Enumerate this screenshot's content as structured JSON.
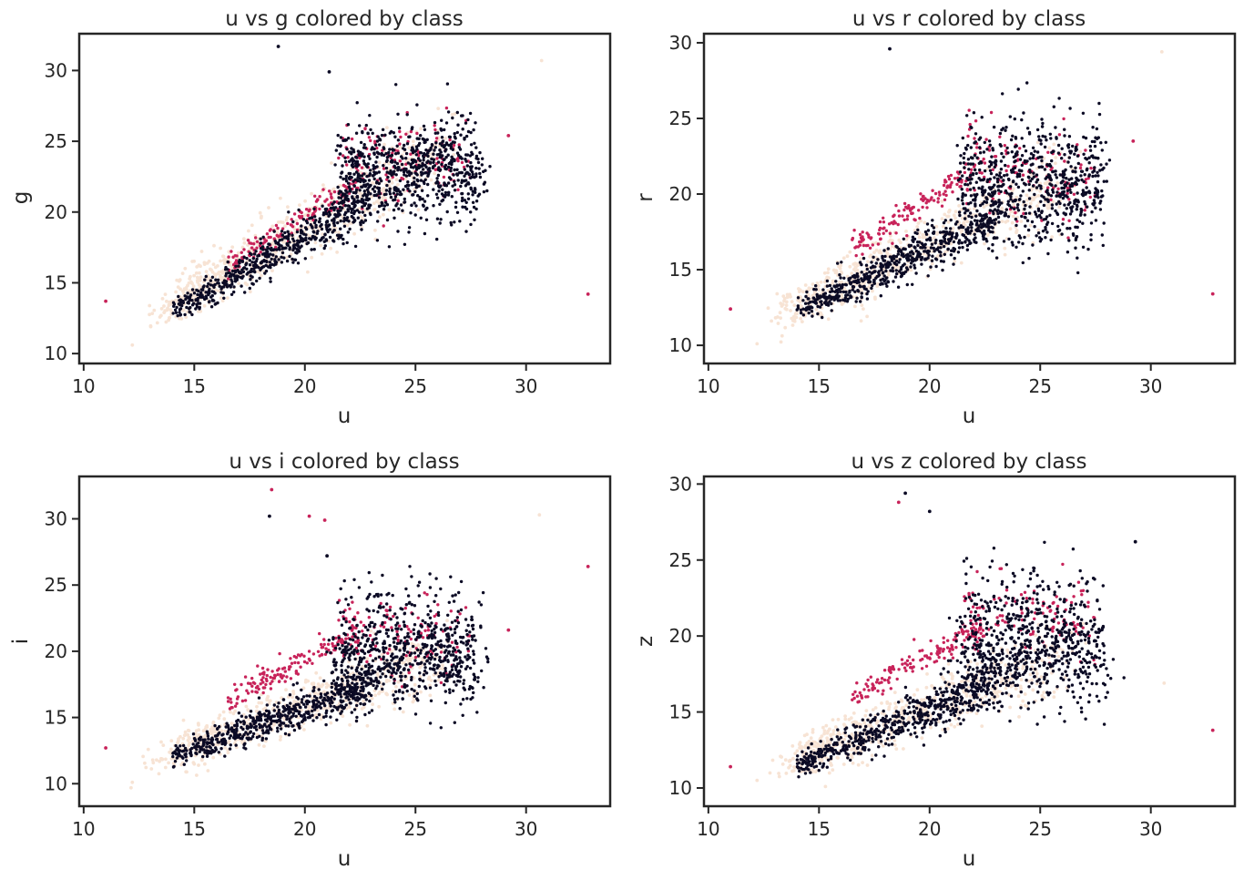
{
  "colors": {
    "class_a": "#f7e3d4",
    "class_b": "#0b0a24",
    "class_c": "#c8235a"
  },
  "chart_data": [
    {
      "type": "scatter",
      "title": "u vs g colored by class",
      "xlabel": "u",
      "ylabel": "g",
      "xlim": [
        9.8,
        33.8
      ],
      "ylim": [
        9.3,
        32.6
      ],
      "xticks": [
        10,
        15,
        20,
        25,
        30
      ],
      "yticks": [
        10,
        15,
        20,
        25,
        30
      ],
      "seed": 11,
      "grid": false,
      "legend": "none",
      "outliers": [
        {
          "x": 11.0,
          "y": 13.7,
          "class": "class_c"
        },
        {
          "x": 32.8,
          "y": 14.2,
          "class": "class_c"
        },
        {
          "x": 18.8,
          "y": 31.7,
          "class": "class_b"
        },
        {
          "x": 21.1,
          "y": 29.9,
          "class": "class_b"
        },
        {
          "x": 30.7,
          "y": 30.7,
          "class": "class_a"
        },
        {
          "x": 29.2,
          "y": 25.4,
          "class": "class_c"
        },
        {
          "x": 12.2,
          "y": 10.6,
          "class": "class_a"
        }
      ]
    },
    {
      "type": "scatter",
      "title": "u vs r colored by class",
      "xlabel": "u",
      "ylabel": "r",
      "xlim": [
        9.8,
        33.8
      ],
      "ylim": [
        8.8,
        30.6
      ],
      "xticks": [
        10,
        15,
        20,
        25,
        30
      ],
      "yticks": [
        10,
        15,
        20,
        25,
        30
      ],
      "seed": 22,
      "grid": false,
      "legend": "none",
      "outliers": [
        {
          "x": 11.0,
          "y": 12.4,
          "class": "class_c"
        },
        {
          "x": 32.8,
          "y": 13.4,
          "class": "class_c"
        },
        {
          "x": 18.2,
          "y": 29.6,
          "class": "class_b"
        },
        {
          "x": 30.5,
          "y": 29.4,
          "class": "class_a"
        },
        {
          "x": 29.2,
          "y": 23.5,
          "class": "class_c"
        },
        {
          "x": 12.2,
          "y": 10.1,
          "class": "class_a"
        }
      ]
    },
    {
      "type": "scatter",
      "title": "u vs i colored by class",
      "xlabel": "u",
      "ylabel": "i",
      "xlim": [
        9.8,
        33.8
      ],
      "ylim": [
        8.3,
        33.2
      ],
      "xticks": [
        10,
        15,
        20,
        25,
        30
      ],
      "yticks": [
        10,
        15,
        20,
        25,
        30
      ],
      "seed": 33,
      "grid": false,
      "legend": "none",
      "outliers": [
        {
          "x": 11.0,
          "y": 12.7,
          "class": "class_c"
        },
        {
          "x": 32.8,
          "y": 26.4,
          "class": "class_c"
        },
        {
          "x": 18.5,
          "y": 32.2,
          "class": "class_c"
        },
        {
          "x": 18.4,
          "y": 30.2,
          "class": "class_b"
        },
        {
          "x": 20.2,
          "y": 30.2,
          "class": "class_c"
        },
        {
          "x": 20.9,
          "y": 29.9,
          "class": "class_c"
        },
        {
          "x": 21.0,
          "y": 27.2,
          "class": "class_b"
        },
        {
          "x": 30.6,
          "y": 30.3,
          "class": "class_a"
        },
        {
          "x": 29.2,
          "y": 21.6,
          "class": "class_c"
        },
        {
          "x": 12.2,
          "y": 10.1,
          "class": "class_a"
        }
      ]
    },
    {
      "type": "scatter",
      "title": "u vs z colored by class",
      "xlabel": "u",
      "ylabel": "z",
      "xlim": [
        9.8,
        33.8
      ],
      "ylim": [
        8.8,
        30.5
      ],
      "xticks": [
        10,
        15,
        20,
        25,
        30
      ],
      "yticks": [
        10,
        15,
        20,
        25,
        30
      ],
      "seed": 44,
      "grid": false,
      "legend": "none",
      "outliers": [
        {
          "x": 11.0,
          "y": 11.4,
          "class": "class_c"
        },
        {
          "x": 32.8,
          "y": 13.8,
          "class": "class_c"
        },
        {
          "x": 18.9,
          "y": 29.4,
          "class": "class_b"
        },
        {
          "x": 18.6,
          "y": 28.8,
          "class": "class_c"
        },
        {
          "x": 20.0,
          "y": 28.2,
          "class": "class_b"
        },
        {
          "x": 29.3,
          "y": 26.2,
          "class": "class_b"
        },
        {
          "x": 30.6,
          "y": 16.9,
          "class": "class_a"
        },
        {
          "x": 12.2,
          "y": 10.5,
          "class": "class_a"
        }
      ]
    }
  ]
}
